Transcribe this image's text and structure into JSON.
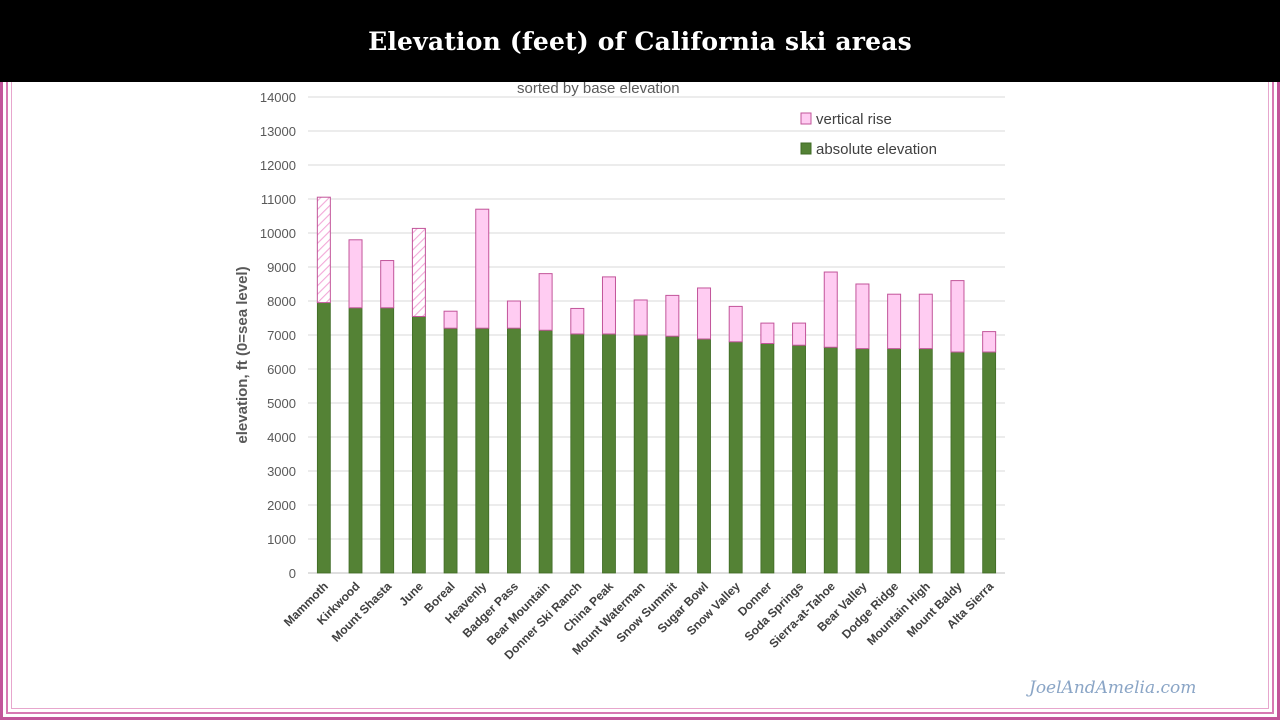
{
  "header": {
    "title": "Elevation (feet) of California ski areas"
  },
  "watermark": "JoelAndAmelia.com",
  "colors": {
    "base": "#548235",
    "base_edge": "#3f6b25",
    "rise_fill": "#ffccf2",
    "rise_edge": "#c2559a",
    "grid": "#d9d9d9",
    "frame": "#c2559a"
  },
  "chart_data": {
    "type": "bar",
    "stacked": true,
    "title": "Elevation (feet) of California ski areas",
    "subtitle": "sorted by base elevation",
    "xlabel": "",
    "ylabel": "elevation, ft (0=sea level)",
    "ylim": [
      0,
      14000
    ],
    "yticks": [
      0,
      1000,
      2000,
      3000,
      4000,
      5000,
      6000,
      7000,
      8000,
      9000,
      10000,
      11000,
      12000,
      13000,
      14000
    ],
    "grid": true,
    "legend_position": "top-right",
    "categories": [
      "Mammoth",
      "Kirkwood",
      "Mount Shasta",
      "June",
      "Boreal",
      "Heavenly",
      "Badger Pass",
      "Bear Mountain",
      "Donner Ski Ranch",
      "China Peak",
      "Mount Waterman",
      "Snow Summit",
      "Sugar Bowl",
      "Snow Valley",
      "Donner",
      "Soda Springs",
      "Sierra-at-Tahoe",
      "Bear Valley",
      "Dodge Ridge",
      "Mountain High",
      "Mount Baldy",
      "Alta Sierra"
    ],
    "hatched_rise": [
      "Mammoth",
      "June"
    ],
    "series": [
      {
        "name": "absolute elevation",
        "values": [
          7953,
          7800,
          7800,
          7545,
          7200,
          7200,
          7200,
          7140,
          7031,
          7030,
          7000,
          6965,
          6883,
          6800,
          6750,
          6700,
          6640,
          6600,
          6600,
          6600,
          6500,
          6500
        ]
      },
      {
        "name": "vertical rise",
        "values": [
          3100,
          2000,
          1390,
          2590,
          500,
          3500,
          800,
          1665,
          750,
          1679,
          1030,
          1200,
          1500,
          1041,
          600,
          650,
          2212,
          1900,
          1600,
          1600,
          2100,
          600
        ]
      }
    ]
  }
}
